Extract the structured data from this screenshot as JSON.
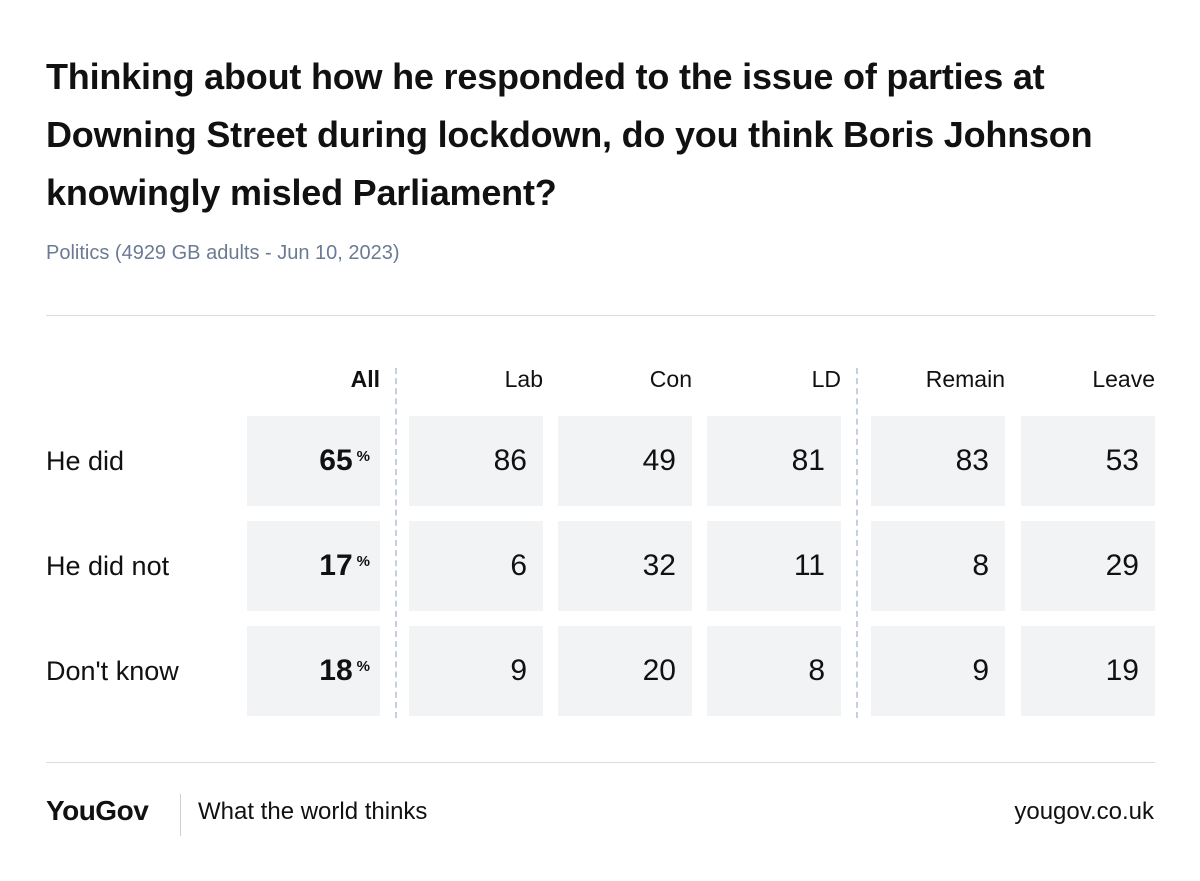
{
  "title": "Thinking about how he responded to the issue of parties at Downing Street during lockdown, do you think Boris Johnson knowingly misled Parliament?",
  "subtitle": "Politics (4929 GB adults - Jun 10, 2023)",
  "footer": {
    "logo": "YouGov",
    "tagline": "What the world thinks",
    "url": "yougov.co.uk"
  },
  "chart_data": {
    "type": "table",
    "title": "Thinking about how he responded to the issue of parties at Downing Street during lockdown, do you think Boris Johnson knowingly misled Parliament?",
    "columns": [
      "All",
      "Lab",
      "Con",
      "LD",
      "Remain",
      "Leave"
    ],
    "rows": [
      {
        "label": "He did",
        "all": "65",
        "pct": "%",
        "values": [
          "86",
          "49",
          "81",
          "83",
          "53"
        ]
      },
      {
        "label": "He did not",
        "all": "17",
        "pct": "%",
        "values": [
          "6",
          "32",
          "11",
          "8",
          "29"
        ]
      },
      {
        "label": "Don't know",
        "all": "18",
        "pct": "%",
        "values": [
          "9",
          "20",
          "8",
          "9",
          "19"
        ]
      }
    ]
  }
}
